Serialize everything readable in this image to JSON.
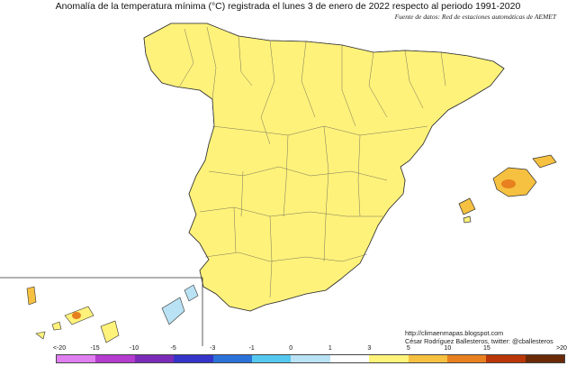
{
  "title": "Anomalía de la temperatura mínima (°C) registrada el lunes 3 de enero de 2022 respecto al periodo 1991-2020",
  "source": "Fuente de datos: Red de estaciones automáticas de AEMET",
  "credits": {
    "url": "http://climaenmapas.blogspot.com",
    "author": "César Rodríguez Ballesteros, twitter: @cballesteros"
  },
  "legend": {
    "ticks": [
      "<-20",
      "-15",
      "-10",
      "-5",
      "-3",
      "-1",
      "0",
      "1",
      "3",
      "5",
      "10",
      "15",
      ">20"
    ],
    "colors": [
      "#e07ff0",
      "#b43ccf",
      "#7a2bb8",
      "#3434c8",
      "#2a72d8",
      "#55c8f0",
      "#b9e2f4",
      "#ffffff",
      "#fff37a",
      "#f6c040",
      "#e8801f",
      "#b83608",
      "#6a2a08"
    ]
  },
  "map": {
    "colors": {
      "sea": "#ffffff",
      "base": "#fff27a",
      "warm": "#f6c040",
      "hot": "#e8801f",
      "veryhot": "#b83608",
      "cool": "#b9e2f4",
      "cold": "#55c8f0",
      "colder": "#2a72d8",
      "outline": "#333333"
    }
  }
}
